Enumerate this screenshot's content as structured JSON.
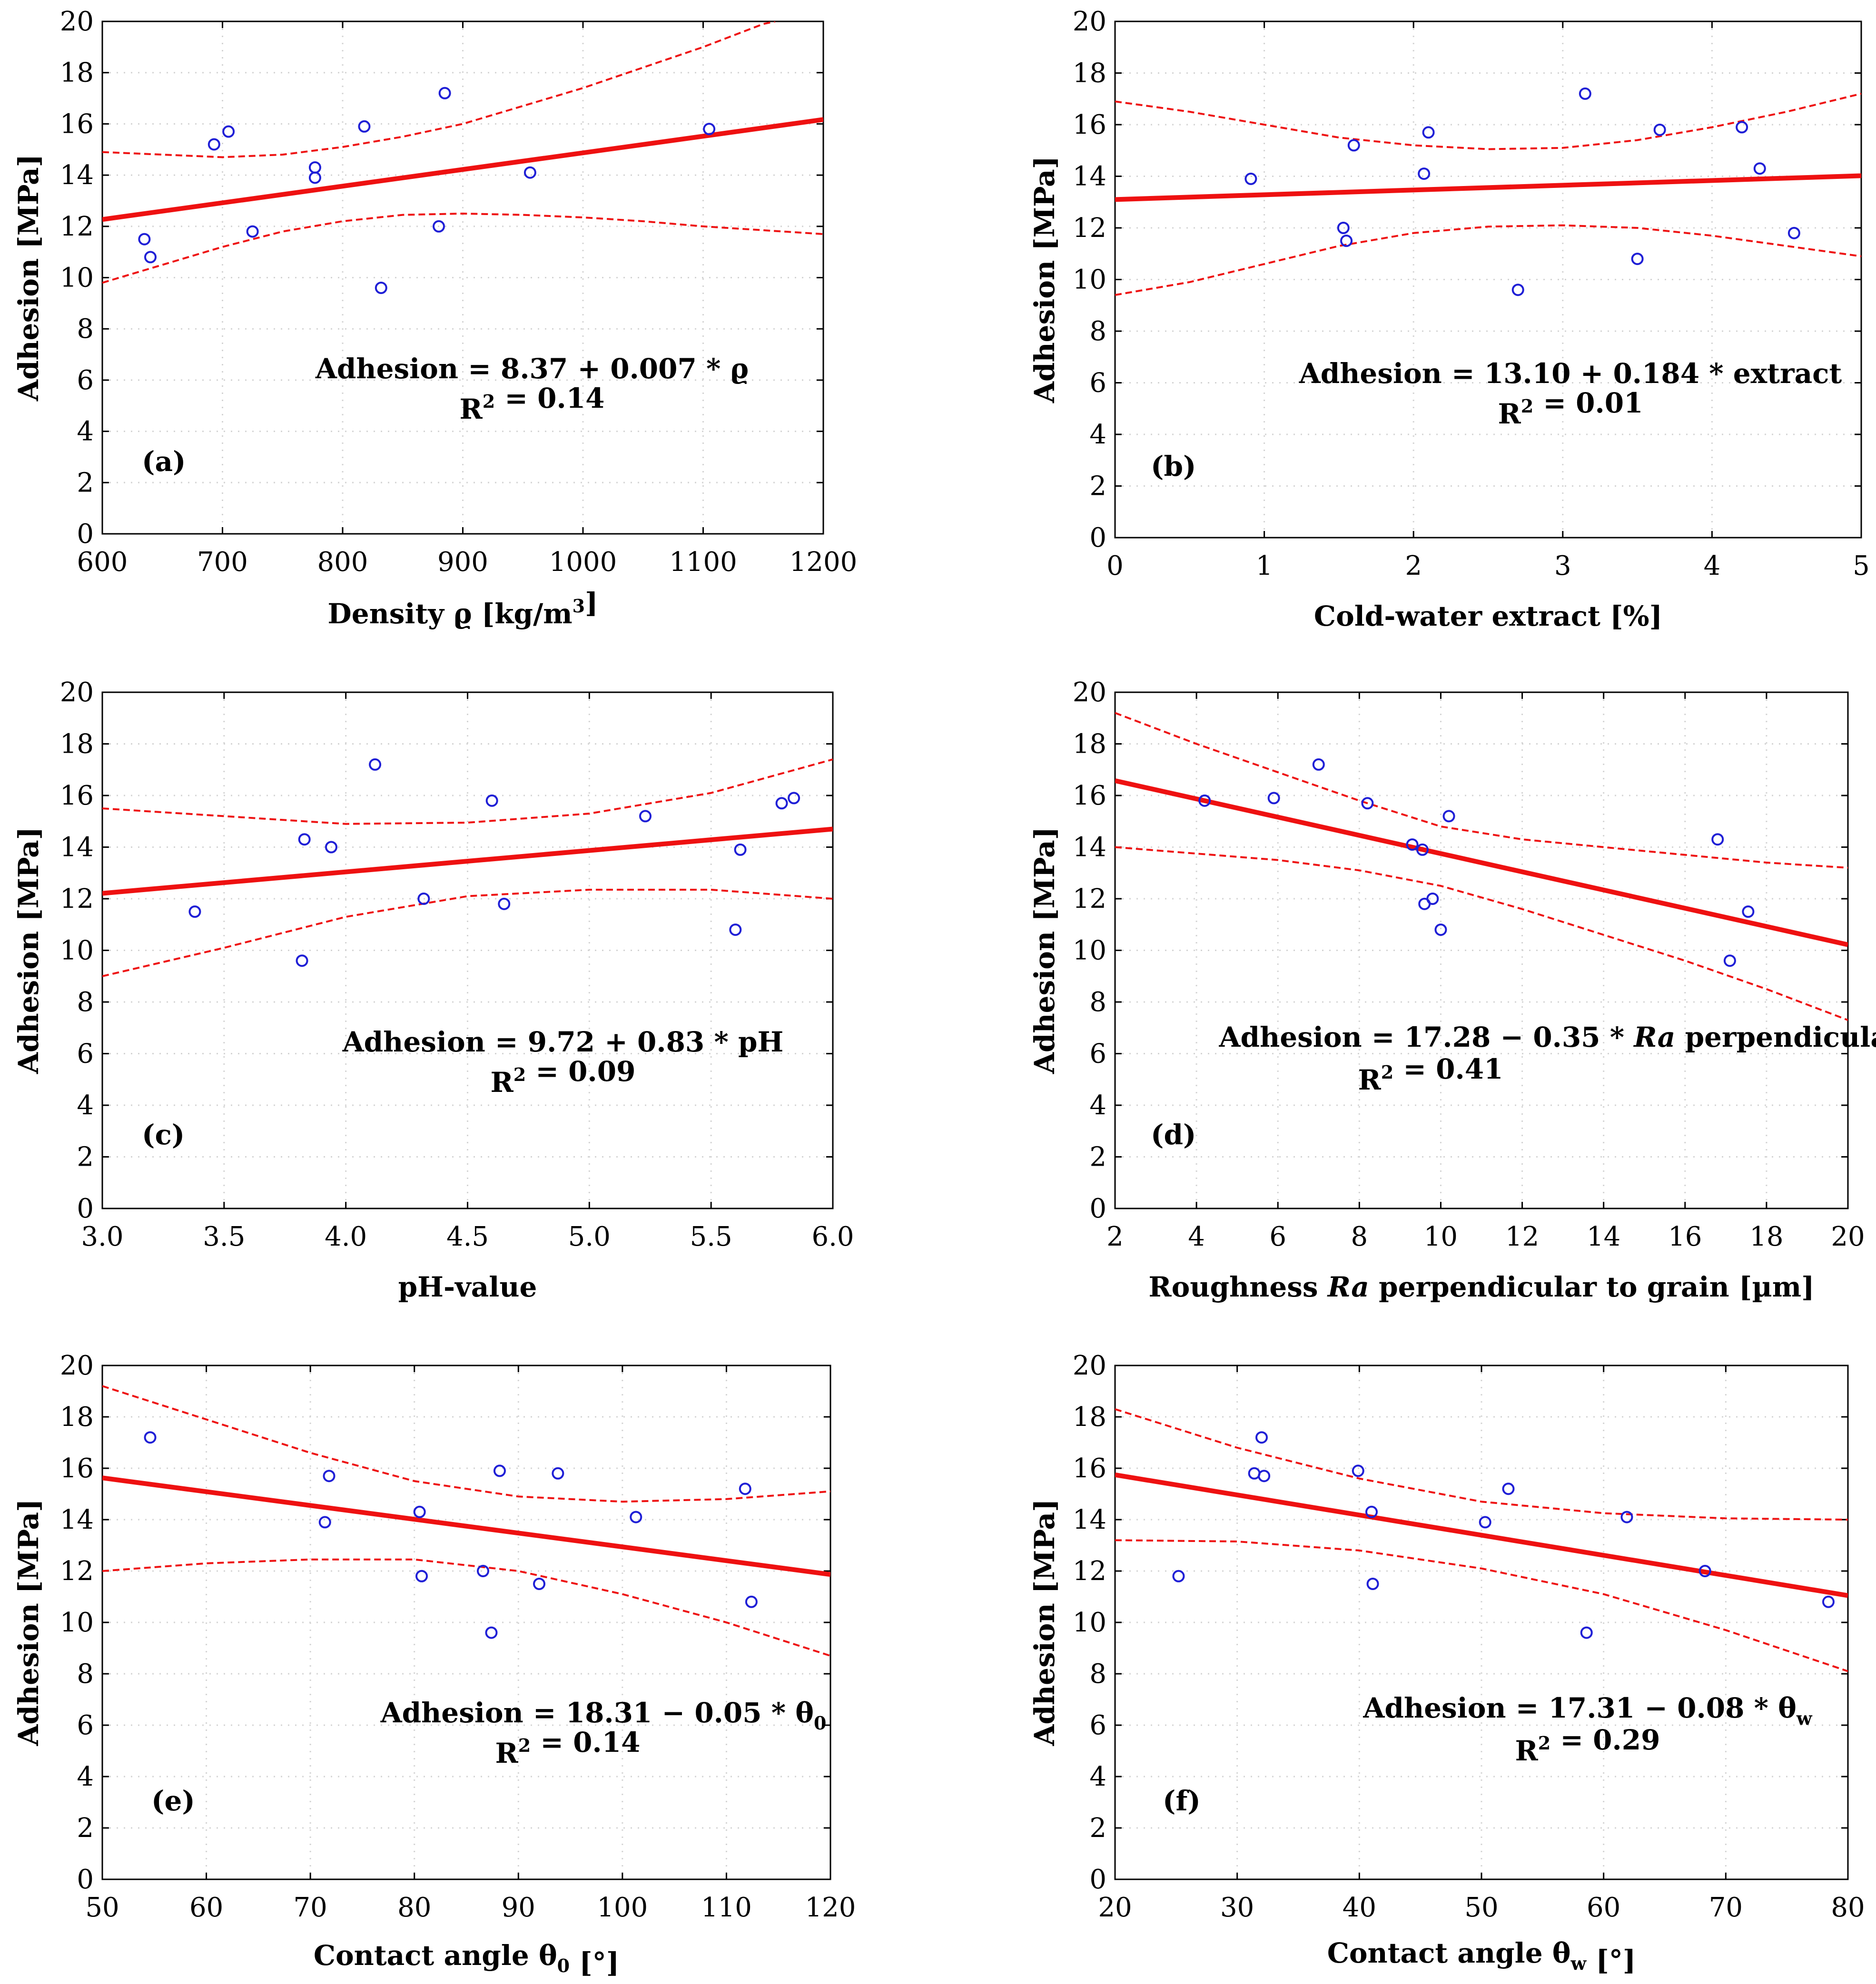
{
  "chart_data": [
    {
      "type": "scatter",
      "panel_label": "(a)",
      "xlabel_parts": [
        {
          "text": "Density ",
          "style": "normal"
        },
        {
          "text": "ϱ",
          "style": "normal"
        },
        {
          "text": " [kg/m",
          "style": "normal"
        },
        {
          "text": "3",
          "style": "sup"
        },
        {
          "text": "]",
          "style": "normal"
        }
      ],
      "ylabel": "Adhesion  [MPa]",
      "xlim": [
        600,
        1200
      ],
      "ylim": [
        0,
        20
      ],
      "xticks": [
        600,
        700,
        800,
        900,
        1000,
        1100,
        1200
      ],
      "xtick_labels": [
        "600",
        "700",
        "800",
        "900",
        "1000",
        "1100",
        "1200"
      ],
      "yticks": [
        0,
        2,
        4,
        6,
        8,
        10,
        12,
        14,
        16,
        18,
        20
      ],
      "ytick_labels": [
        "0",
        "2",
        "4",
        "6",
        "8",
        "10",
        "12",
        "14",
        "16",
        "18",
        "20"
      ],
      "points": [
        {
          "x": 635,
          "y": 11.5
        },
        {
          "x": 640,
          "y": 10.8
        },
        {
          "x": 693,
          "y": 15.2
        },
        {
          "x": 705,
          "y": 15.7
        },
        {
          "x": 725,
          "y": 11.8
        },
        {
          "x": 777,
          "y": 14.3
        },
        {
          "x": 777,
          "y": 13.9
        },
        {
          "x": 818,
          "y": 15.9
        },
        {
          "x": 832,
          "y": 9.6
        },
        {
          "x": 880,
          "y": 12.0
        },
        {
          "x": 885,
          "y": 17.2
        },
        {
          "x": 956,
          "y": 14.1
        },
        {
          "x": 1105,
          "y": 15.8
        }
      ],
      "fit": {
        "intercept": 8.37,
        "slope": 0.0065
      },
      "ci_upper": {
        "x": [
          600,
          650,
          700,
          750,
          800,
          850,
          900,
          950,
          1000,
          1050,
          1100,
          1150,
          1160
        ],
        "y": [
          14.9,
          14.8,
          14.7,
          14.8,
          15.1,
          15.5,
          16.0,
          16.7,
          17.4,
          18.2,
          19.0,
          19.9,
          20.0
        ]
      },
      "ci_lower": {
        "x": [
          600,
          650,
          700,
          750,
          800,
          850,
          900,
          950,
          1000,
          1050,
          1100,
          1150,
          1200
        ],
        "y": [
          9.8,
          10.5,
          11.2,
          11.8,
          12.2,
          12.45,
          12.5,
          12.45,
          12.35,
          12.2,
          12.0,
          11.85,
          11.7
        ]
      },
      "equation": "Adhesion = 8.37 + 0.007 * ϱ",
      "r2_label": "R",
      "r2_sup": "2",
      "r2_value": " = 0.14"
    },
    {
      "type": "scatter",
      "panel_label": "(b)",
      "xlabel_parts": [
        {
          "text": "Cold-water extract [%]",
          "style": "normal"
        }
      ],
      "ylabel": "Adhesion  [MPa]",
      "xlim": [
        0,
        5
      ],
      "ylim": [
        0,
        20
      ],
      "xticks": [
        0,
        1,
        2,
        3,
        4,
        5
      ],
      "xtick_labels": [
        "0",
        "1",
        "2",
        "3",
        "4",
        "5"
      ],
      "yticks": [
        0,
        2,
        4,
        6,
        8,
        10,
        12,
        14,
        16,
        18,
        20
      ],
      "ytick_labels": [
        "0",
        "2",
        "4",
        "6",
        "8",
        "10",
        "12",
        "14",
        "16",
        "18",
        "20"
      ],
      "points": [
        {
          "x": 0.91,
          "y": 13.9
        },
        {
          "x": 1.53,
          "y": 12.0
        },
        {
          "x": 1.55,
          "y": 11.5
        },
        {
          "x": 1.6,
          "y": 15.2
        },
        {
          "x": 2.07,
          "y": 14.1
        },
        {
          "x": 2.1,
          "y": 15.7
        },
        {
          "x": 2.7,
          "y": 9.6
        },
        {
          "x": 3.15,
          "y": 17.2
        },
        {
          "x": 3.5,
          "y": 10.8
        },
        {
          "x": 3.65,
          "y": 15.8
        },
        {
          "x": 4.2,
          "y": 15.9
        },
        {
          "x": 4.32,
          "y": 14.3
        },
        {
          "x": 4.55,
          "y": 11.8
        }
      ],
      "fit": {
        "intercept": 13.1,
        "slope": 0.184
      },
      "ci_upper": {
        "x": [
          0,
          0.5,
          1,
          1.5,
          2,
          2.5,
          3,
          3.5,
          4,
          4.5,
          5
        ],
        "y": [
          16.9,
          16.5,
          16.0,
          15.5,
          15.2,
          15.05,
          15.1,
          15.4,
          15.9,
          16.5,
          17.2
        ]
      },
      "ci_lower": {
        "x": [
          0,
          0.5,
          1,
          1.5,
          2,
          2.5,
          3,
          3.5,
          4,
          4.5,
          5
        ],
        "y": [
          9.4,
          9.9,
          10.6,
          11.3,
          11.8,
          12.05,
          12.1,
          12.0,
          11.7,
          11.3,
          10.9
        ]
      },
      "equation": "Adhesion = 13.10 + 0.184 * extract",
      "r2_label": "R",
      "r2_sup": "2",
      "r2_value": " = 0.01"
    },
    {
      "type": "scatter",
      "panel_label": "(c)",
      "xlabel_parts": [
        {
          "text": "pH-value",
          "style": "normal"
        }
      ],
      "ylabel": "Adhesion  [MPa]",
      "xlim": [
        3.0,
        6.0
      ],
      "ylim": [
        0,
        20
      ],
      "xticks": [
        3.0,
        3.5,
        4.0,
        4.5,
        5.0,
        5.5,
        6.0
      ],
      "xtick_labels": [
        "3.0",
        "3.5",
        "4.0",
        "4.5",
        "5.0",
        "5.5",
        "6.0"
      ],
      "yticks": [
        0,
        2,
        4,
        6,
        8,
        10,
        12,
        14,
        16,
        18,
        20
      ],
      "ytick_labels": [
        "0",
        "2",
        "4",
        "6",
        "8",
        "10",
        "12",
        "14",
        "16",
        "18",
        "20"
      ],
      "points": [
        {
          "x": 3.38,
          "y": 11.5
        },
        {
          "x": 3.82,
          "y": 9.6
        },
        {
          "x": 3.83,
          "y": 14.3
        },
        {
          "x": 3.94,
          "y": 14.0
        },
        {
          "x": 4.12,
          "y": 17.2
        },
        {
          "x": 4.32,
          "y": 12.0
        },
        {
          "x": 4.6,
          "y": 15.8
        },
        {
          "x": 4.65,
          "y": 11.8
        },
        {
          "x": 5.23,
          "y": 15.2
        },
        {
          "x": 5.6,
          "y": 10.8
        },
        {
          "x": 5.62,
          "y": 13.9
        },
        {
          "x": 5.79,
          "y": 15.7
        },
        {
          "x": 5.84,
          "y": 15.9
        }
      ],
      "fit": {
        "intercept": 9.72,
        "slope": 0.83
      },
      "ci_upper": {
        "x": [
          3.0,
          3.5,
          4.0,
          4.5,
          5.0,
          5.5,
          6.0
        ],
        "y": [
          15.5,
          15.2,
          14.9,
          14.95,
          15.3,
          16.1,
          17.4
        ]
      },
      "ci_lower": {
        "x": [
          3.0,
          3.5,
          4.0,
          4.5,
          5.0,
          5.5,
          6.0
        ],
        "y": [
          9.0,
          10.1,
          11.3,
          12.1,
          12.35,
          12.35,
          12.0
        ]
      },
      "equation": "Adhesion = 9.72 + 0.83 * pH",
      "r2_label": "R",
      "r2_sup": "2",
      "r2_value": " = 0.09"
    },
    {
      "type": "scatter",
      "panel_label": "(d)",
      "xlabel_parts": [
        {
          "text": "Roughness ",
          "style": "normal"
        },
        {
          "text": "Ra",
          "style": "italic"
        },
        {
          "text": " perpendicular to grain [µm]",
          "style": "normal"
        }
      ],
      "ylabel": "Adhesion [MPa]",
      "xlim": [
        2,
        20
      ],
      "ylim": [
        0,
        20
      ],
      "xticks": [
        2,
        4,
        6,
        8,
        10,
        12,
        14,
        16,
        18,
        20
      ],
      "xtick_labels": [
        "2",
        "4",
        "6",
        "8",
        "10",
        "12",
        "14",
        "16",
        "18",
        "20"
      ],
      "yticks": [
        0,
        2,
        4,
        6,
        8,
        10,
        12,
        14,
        16,
        18,
        20
      ],
      "ytick_labels": [
        "0",
        "2",
        "4",
        "6",
        "8",
        "10",
        "12",
        "14",
        "16",
        "18",
        "20"
      ],
      "points": [
        {
          "x": 4.2,
          "y": 15.8
        },
        {
          "x": 5.9,
          "y": 15.9
        },
        {
          "x": 7.0,
          "y": 17.2
        },
        {
          "x": 8.2,
          "y": 15.7
        },
        {
          "x": 9.3,
          "y": 14.1
        },
        {
          "x": 9.55,
          "y": 13.9
        },
        {
          "x": 9.6,
          "y": 11.8
        },
        {
          "x": 9.8,
          "y": 12.0
        },
        {
          "x": 10.0,
          "y": 10.8
        },
        {
          "x": 10.2,
          "y": 15.2
        },
        {
          "x": 16.8,
          "y": 14.3
        },
        {
          "x": 17.1,
          "y": 9.6
        },
        {
          "x": 17.55,
          "y": 11.5
        }
      ],
      "fit": {
        "intercept": 17.28,
        "slope": -0.353
      },
      "ci_upper": {
        "x": [
          2,
          4,
          6,
          8,
          10,
          12,
          14,
          16,
          18,
          20
        ],
        "y": [
          19.2,
          18.0,
          16.9,
          15.8,
          14.8,
          14.3,
          14.0,
          13.7,
          13.4,
          13.2
        ]
      },
      "ci_lower": {
        "x": [
          2,
          4,
          6,
          8,
          10,
          12,
          14,
          16,
          18,
          20
        ],
        "y": [
          14.0,
          13.75,
          13.5,
          13.1,
          12.5,
          11.6,
          10.6,
          9.6,
          8.5,
          7.3
        ]
      },
      "equation_parts": [
        {
          "text": "Adhesion = 17.28 − 0.35 * ",
          "style": "normal"
        },
        {
          "text": "Ra",
          "style": "italic"
        },
        {
          "text": " perpendicular",
          "style": "normal"
        }
      ],
      "r2_label": "R",
      "r2_sup": "2",
      "r2_value": " = 0.41"
    },
    {
      "type": "scatter",
      "panel_label": "(e)",
      "xlabel_parts": [
        {
          "text": "Contact angle θ",
          "style": "normal"
        },
        {
          "text": "0",
          "style": "sub"
        },
        {
          "text": " [°]",
          "style": "normal"
        }
      ],
      "ylabel": "Adhesion [MPa]",
      "xlim": [
        50,
        120
      ],
      "ylim": [
        0,
        20
      ],
      "xticks": [
        50,
        60,
        70,
        80,
        90,
        100,
        110,
        120
      ],
      "xtick_labels": [
        "50",
        "60",
        "70",
        "80",
        "90",
        "100",
        "110",
        "120"
      ],
      "yticks": [
        0,
        2,
        4,
        6,
        8,
        10,
        12,
        14,
        16,
        18,
        20
      ],
      "ytick_labels": [
        "0",
        "2",
        "4",
        "6",
        "8",
        "10",
        "12",
        "14",
        "16",
        "18",
        "20"
      ],
      "points": [
        {
          "x": 54.6,
          "y": 17.2
        },
        {
          "x": 71.4,
          "y": 13.9
        },
        {
          "x": 71.8,
          "y": 15.7
        },
        {
          "x": 80.5,
          "y": 14.3
        },
        {
          "x": 80.7,
          "y": 11.8
        },
        {
          "x": 86.6,
          "y": 12.0
        },
        {
          "x": 87.4,
          "y": 9.6
        },
        {
          "x": 88.2,
          "y": 15.9
        },
        {
          "x": 92.0,
          "y": 11.5
        },
        {
          "x": 93.8,
          "y": 15.8
        },
        {
          "x": 101.3,
          "y": 14.1
        },
        {
          "x": 111.8,
          "y": 15.2
        },
        {
          "x": 112.4,
          "y": 10.8
        }
      ],
      "fit": {
        "intercept": 18.31,
        "slope": -0.0537
      },
      "ci_upper": {
        "x": [
          50,
          60,
          70,
          80,
          90,
          100,
          110,
          120
        ],
        "y": [
          19.2,
          17.9,
          16.6,
          15.5,
          14.9,
          14.7,
          14.8,
          15.1
        ]
      },
      "ci_lower": {
        "x": [
          50,
          60,
          70,
          80,
          90,
          100,
          110,
          120
        ],
        "y": [
          12.0,
          12.3,
          12.45,
          12.45,
          12.0,
          11.1,
          10.0,
          8.7
        ]
      },
      "equation_parts": [
        {
          "text": "Adhesion = 18.31 − 0.05 * θ",
          "style": "normal"
        },
        {
          "text": "0",
          "style": "sub"
        }
      ],
      "r2_label": "R",
      "r2_sup": "2",
      "r2_value": " = 0.14"
    },
    {
      "type": "scatter",
      "panel_label": "(f)",
      "xlabel_parts": [
        {
          "text": "Contact angle θ",
          "style": "normal"
        },
        {
          "text": "w",
          "style": "sub"
        },
        {
          "text": " [°]",
          "style": "normal"
        }
      ],
      "ylabel": "Adhesion [MPa]",
      "xlim": [
        20,
        80
      ],
      "ylim": [
        0,
        20
      ],
      "xticks": [
        20,
        30,
        40,
        50,
        60,
        70,
        80
      ],
      "xtick_labels": [
        "20",
        "30",
        "40",
        "50",
        "60",
        "70",
        "80"
      ],
      "yticks": [
        0,
        2,
        4,
        6,
        8,
        10,
        12,
        14,
        16,
        18,
        20
      ],
      "ytick_labels": [
        "0",
        "2",
        "4",
        "6",
        "8",
        "10",
        "12",
        "14",
        "16",
        "18",
        "20"
      ],
      "points": [
        {
          "x": 25.2,
          "y": 11.8
        },
        {
          "x": 31.4,
          "y": 15.8
        },
        {
          "x": 32.0,
          "y": 17.2
        },
        {
          "x": 32.2,
          "y": 15.7
        },
        {
          "x": 39.9,
          "y": 15.9
        },
        {
          "x": 41.0,
          "y": 14.3
        },
        {
          "x": 41.1,
          "y": 11.5
        },
        {
          "x": 50.3,
          "y": 13.9
        },
        {
          "x": 52.2,
          "y": 15.2
        },
        {
          "x": 58.6,
          "y": 9.6
        },
        {
          "x": 61.9,
          "y": 14.1
        },
        {
          "x": 68.3,
          "y": 12.0
        },
        {
          "x": 78.4,
          "y": 10.8
        }
      ],
      "fit": {
        "intercept": 17.31,
        "slope": -0.0783
      },
      "ci_upper": {
        "x": [
          20,
          30,
          40,
          50,
          60,
          70,
          80
        ],
        "y": [
          18.3,
          16.8,
          15.6,
          14.7,
          14.25,
          14.05,
          14.0
        ]
      },
      "ci_lower": {
        "x": [
          20,
          30,
          40,
          50,
          60,
          70,
          80
        ],
        "y": [
          13.2,
          13.15,
          12.8,
          12.1,
          11.1,
          9.7,
          8.1
        ]
      },
      "equation_parts": [
        {
          "text": "Adhesion = 17.31 − 0.08 * θ",
          "style": "normal"
        },
        {
          "text": "w",
          "style": "sub"
        }
      ],
      "r2_label": "R",
      "r2_sup": "2",
      "r2_value": " = 0.29"
    }
  ]
}
